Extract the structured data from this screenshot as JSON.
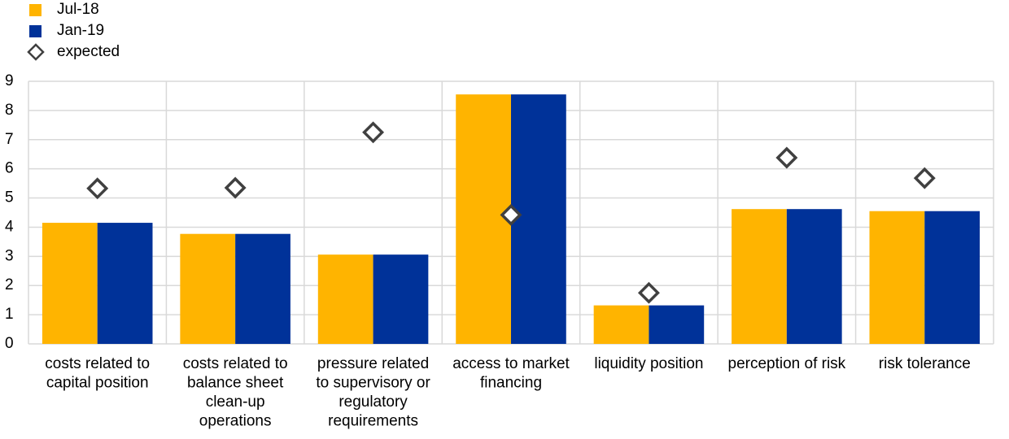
{
  "chart_data": {
    "type": "bar",
    "categories": [
      "costs related to\ncapital position",
      "costs related to\nbalance sheet\nclean-up\noperations",
      "pressure related\nto supervisory or\nregulatory\nrequirements",
      "access to market\nfinancing",
      "liquidity position",
      "perception of risk",
      "risk tolerance"
    ],
    "series": [
      {
        "name": "Jul-18",
        "color": "#ffb400",
        "values": [
          4.15,
          3.77,
          3.06,
          8.55,
          1.32,
          4.62,
          4.55
        ]
      },
      {
        "name": "Jan-19",
        "color": "#003299",
        "values": [
          4.15,
          3.77,
          3.06,
          8.55,
          1.32,
          4.62,
          4.55
        ]
      },
      {
        "name": "expected",
        "type": "scatter",
        "marker": "diamond",
        "color": "#404040",
        "values": [
          5.33,
          5.35,
          7.25,
          4.42,
          1.75,
          6.38,
          5.68
        ]
      }
    ],
    "ylim": [
      0,
      9
    ],
    "yticks": [
      0,
      1,
      2,
      3,
      4,
      5,
      6,
      7,
      8,
      9
    ],
    "grid": true,
    "legend": "top-left"
  }
}
